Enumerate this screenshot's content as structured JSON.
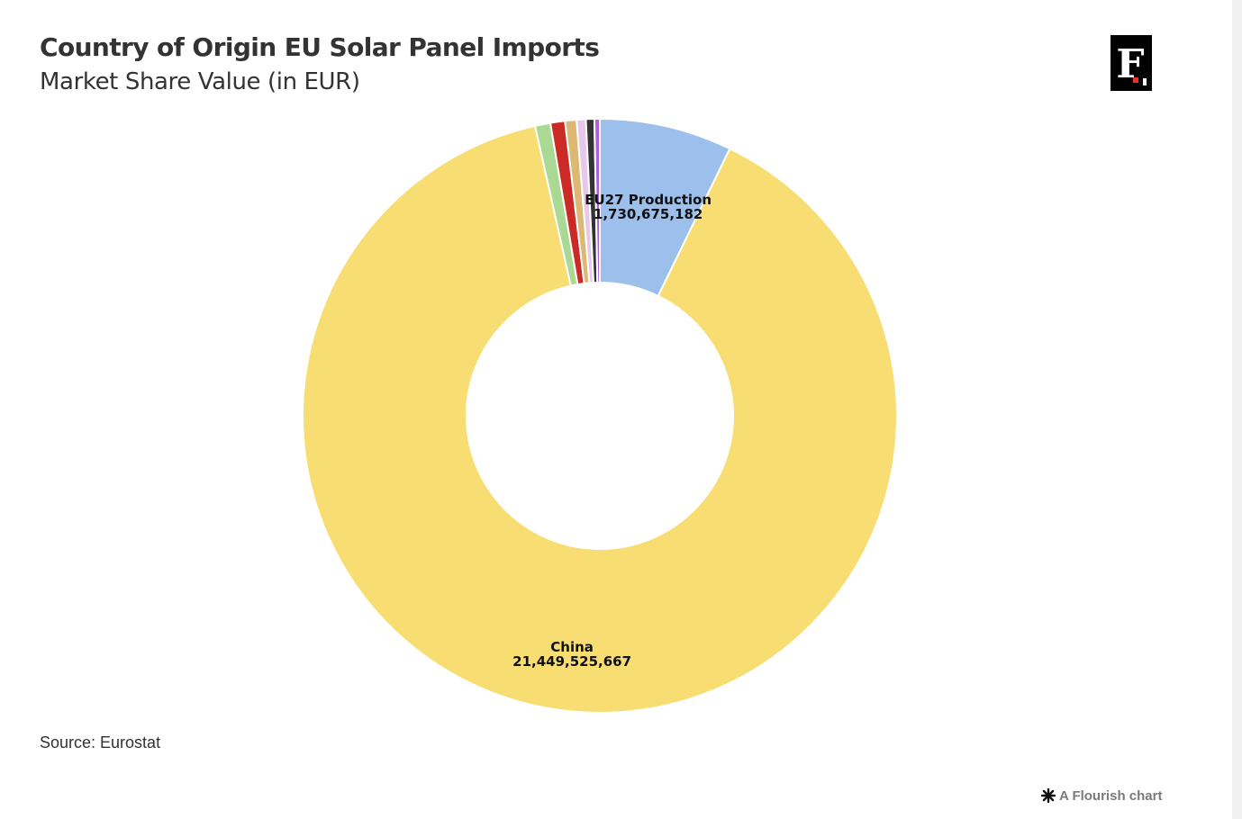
{
  "header": {
    "title": "Country of Origin EU Solar Panel Imports",
    "subtitle": "Market Share Value (in EUR)",
    "logo_letter": "F"
  },
  "footer": {
    "source": "Source: Eurostat",
    "credit": "A Flourish chart"
  },
  "chart_data": {
    "type": "pie",
    "variant": "donut",
    "title": "Country of Origin EU Solar Panel Imports",
    "subtitle": "Market Share Value (in EUR)",
    "slices": [
      {
        "label": "EU27 Production",
        "value": 1730675182,
        "value_text": "1,730,675,182",
        "color": "#9dbfec",
        "show_label": true
      },
      {
        "label": "China",
        "value": 21449525667,
        "value_text": "21,449,525,667",
        "color": "#f8dd72",
        "show_label": true
      },
      {
        "label": "",
        "value": 200000000,
        "color": "#aad994",
        "show_label": false
      },
      {
        "label": "",
        "value": 190000000,
        "color": "#cc2b25",
        "show_label": false
      },
      {
        "label": "",
        "value": 150000000,
        "color": "#ddb872",
        "show_label": false
      },
      {
        "label": "",
        "value": 120000000,
        "color": "#e8c8ea",
        "show_label": false
      },
      {
        "label": "",
        "value": 110000000,
        "color": "#333333",
        "show_label": false
      },
      {
        "label": "",
        "value": 70000000,
        "color": "#b05ee0",
        "show_label": false
      }
    ],
    "legend": "none"
  }
}
